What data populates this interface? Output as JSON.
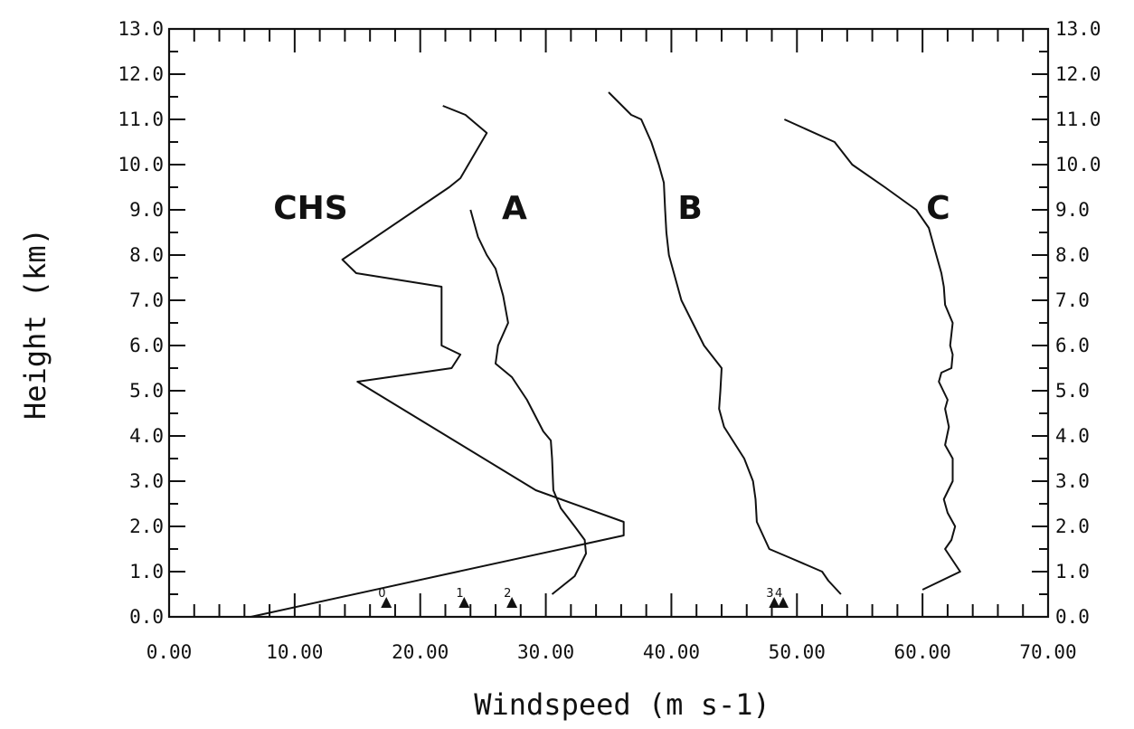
{
  "chart_data": {
    "type": "line",
    "title": "",
    "xlabel": "Windspeed (m s-1)",
    "ylabel": "Height (km)",
    "xlim": [
      0,
      70
    ],
    "ylim": [
      0,
      13
    ],
    "x_ticks": [
      "0.00",
      "10.00",
      "20.00",
      "30.00",
      "40.00",
      "50.00",
      "60.00",
      "70.00"
    ],
    "y_ticks": [
      "0.0",
      "1.0",
      "2.0",
      "3.0",
      "4.0",
      "5.0",
      "6.0",
      "7.0",
      "8.0",
      "9.0",
      "10.0",
      "11.0",
      "12.0",
      "13.0"
    ],
    "right_y_ticks": true,
    "grid": false,
    "series": [
      {
        "name": "CHS",
        "label_at": [
          8.3,
          8.8
        ],
        "points": [
          [
            6.5,
            0.0
          ],
          [
            36.2,
            1.8
          ],
          [
            36.2,
            2.1
          ],
          [
            29.2,
            2.8
          ],
          [
            15.0,
            5.2
          ],
          [
            22.5,
            5.5
          ],
          [
            23.2,
            5.8
          ],
          [
            21.7,
            6.0
          ],
          [
            21.7,
            7.3
          ],
          [
            14.9,
            7.6
          ],
          [
            13.8,
            7.9
          ],
          [
            22.3,
            9.5
          ],
          [
            23.2,
            9.7
          ],
          [
            25.3,
            10.7
          ],
          [
            23.6,
            11.1
          ],
          [
            21.8,
            11.3
          ]
        ]
      },
      {
        "name": "A",
        "label_at": [
          26.5,
          8.8
        ],
        "points": [
          [
            30.5,
            0.5
          ],
          [
            32.3,
            0.9
          ],
          [
            33.2,
            1.4
          ],
          [
            33.1,
            1.7
          ],
          [
            32.3,
            2.0
          ],
          [
            31.2,
            2.4
          ],
          [
            30.6,
            2.8
          ],
          [
            30.5,
            3.5
          ],
          [
            30.4,
            3.9
          ],
          [
            29.8,
            4.1
          ],
          [
            28.5,
            4.8
          ],
          [
            27.3,
            5.3
          ],
          [
            26.0,
            5.6
          ],
          [
            26.2,
            6.0
          ],
          [
            27.0,
            6.5
          ],
          [
            26.6,
            7.1
          ],
          [
            26.0,
            7.7
          ],
          [
            25.3,
            8.0
          ],
          [
            24.6,
            8.4
          ],
          [
            24.0,
            9.0
          ]
        ]
      },
      {
        "name": "B",
        "label_at": [
          40.5,
          8.8
        ],
        "points": [
          [
            53.5,
            0.5
          ],
          [
            52.5,
            0.8
          ],
          [
            52.0,
            1.0
          ],
          [
            49.5,
            1.3
          ],
          [
            47.8,
            1.5
          ],
          [
            47.3,
            1.8
          ],
          [
            46.8,
            2.1
          ],
          [
            46.7,
            2.6
          ],
          [
            46.5,
            3.0
          ],
          [
            45.8,
            3.5
          ],
          [
            44.2,
            4.2
          ],
          [
            43.8,
            4.6
          ],
          [
            43.9,
            5.0
          ],
          [
            44.0,
            5.5
          ],
          [
            42.6,
            6.0
          ],
          [
            41.7,
            6.5
          ],
          [
            40.8,
            7.0
          ],
          [
            39.8,
            8.0
          ],
          [
            39.6,
            8.5
          ],
          [
            39.5,
            9.0
          ],
          [
            39.4,
            9.6
          ],
          [
            39.0,
            10.0
          ],
          [
            38.4,
            10.5
          ],
          [
            37.6,
            11.0
          ],
          [
            36.8,
            11.1
          ],
          [
            35.0,
            11.6
          ]
        ]
      },
      {
        "name": "C",
        "label_at": [
          60.3,
          8.8
        ],
        "points": [
          [
            60.0,
            0.6
          ],
          [
            63.0,
            1.0
          ],
          [
            61.8,
            1.5
          ],
          [
            62.3,
            1.7
          ],
          [
            62.6,
            2.0
          ],
          [
            62.0,
            2.3
          ],
          [
            61.7,
            2.6
          ],
          [
            62.4,
            3.0
          ],
          [
            62.4,
            3.5
          ],
          [
            61.8,
            3.8
          ],
          [
            62.1,
            4.2
          ],
          [
            61.8,
            4.6
          ],
          [
            62.0,
            4.8
          ],
          [
            61.3,
            5.2
          ],
          [
            61.5,
            5.4
          ],
          [
            62.3,
            5.5
          ],
          [
            62.4,
            5.8
          ],
          [
            62.2,
            6.0
          ],
          [
            62.4,
            6.5
          ],
          [
            61.8,
            6.9
          ],
          [
            61.7,
            7.3
          ],
          [
            61.5,
            7.6
          ],
          [
            61.0,
            8.1
          ],
          [
            60.5,
            8.6
          ],
          [
            59.5,
            9.0
          ],
          [
            57.0,
            9.5
          ],
          [
            54.4,
            10.0
          ],
          [
            53.0,
            10.5
          ],
          [
            49.0,
            11.0
          ]
        ]
      }
    ],
    "stations": [
      {
        "label": "0",
        "x": 17.3,
        "y": 0.3
      },
      {
        "label": "1",
        "x": 23.5,
        "y": 0.3
      },
      {
        "label": "2",
        "x": 27.3,
        "y": 0.3
      },
      {
        "label": "3",
        "x": 48.2,
        "y": 0.3
      },
      {
        "label": "4",
        "x": 48.9,
        "y": 0.3
      }
    ]
  }
}
